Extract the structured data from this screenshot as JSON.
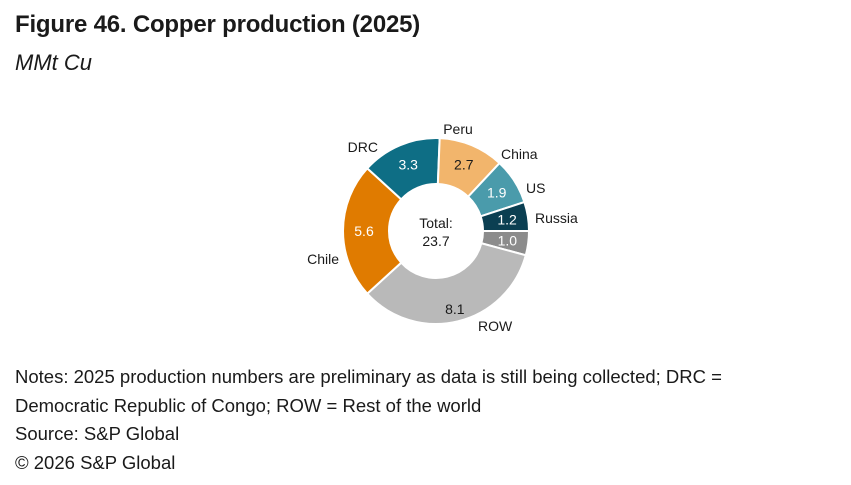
{
  "figure": {
    "title": "Figure 46. Copper production (2025)",
    "subtitle": "MMt Cu"
  },
  "chart_data": {
    "type": "pie",
    "variant": "donut",
    "center_label": [
      "Total:",
      "23.7"
    ],
    "slices": [
      {
        "label": "Russia",
        "value": 1.0,
        "value_label": "1.0",
        "color": "#8c8c8c"
      },
      {
        "label": "ROW",
        "value": 8.1,
        "value_label": "8.1",
        "color": "#b9b9b9"
      },
      {
        "label": "Chile",
        "value": 5.6,
        "value_label": "5.6",
        "color": "#e07b00"
      },
      {
        "label": "DRC",
        "value": 3.3,
        "value_label": "3.3",
        "color": "#0e6e85"
      },
      {
        "label": "Peru",
        "value": 2.7,
        "value_label": "2.7",
        "color": "#f2b56c"
      },
      {
        "label": "China",
        "value": 1.9,
        "value_label": "1.9",
        "color": "#4a9bab"
      },
      {
        "label": "US",
        "value": 1.2,
        "value_label": "1.2",
        "color": "#0b3f52"
      }
    ]
  },
  "notes": {
    "line1": "Notes: 2025 production numbers are preliminary as data is still being collected; DRC =",
    "line2": "Democratic Republic of Congo; ROW = Rest of the world",
    "source": "Source: S&P Global",
    "copyright": "© 2026 S&P Global"
  }
}
